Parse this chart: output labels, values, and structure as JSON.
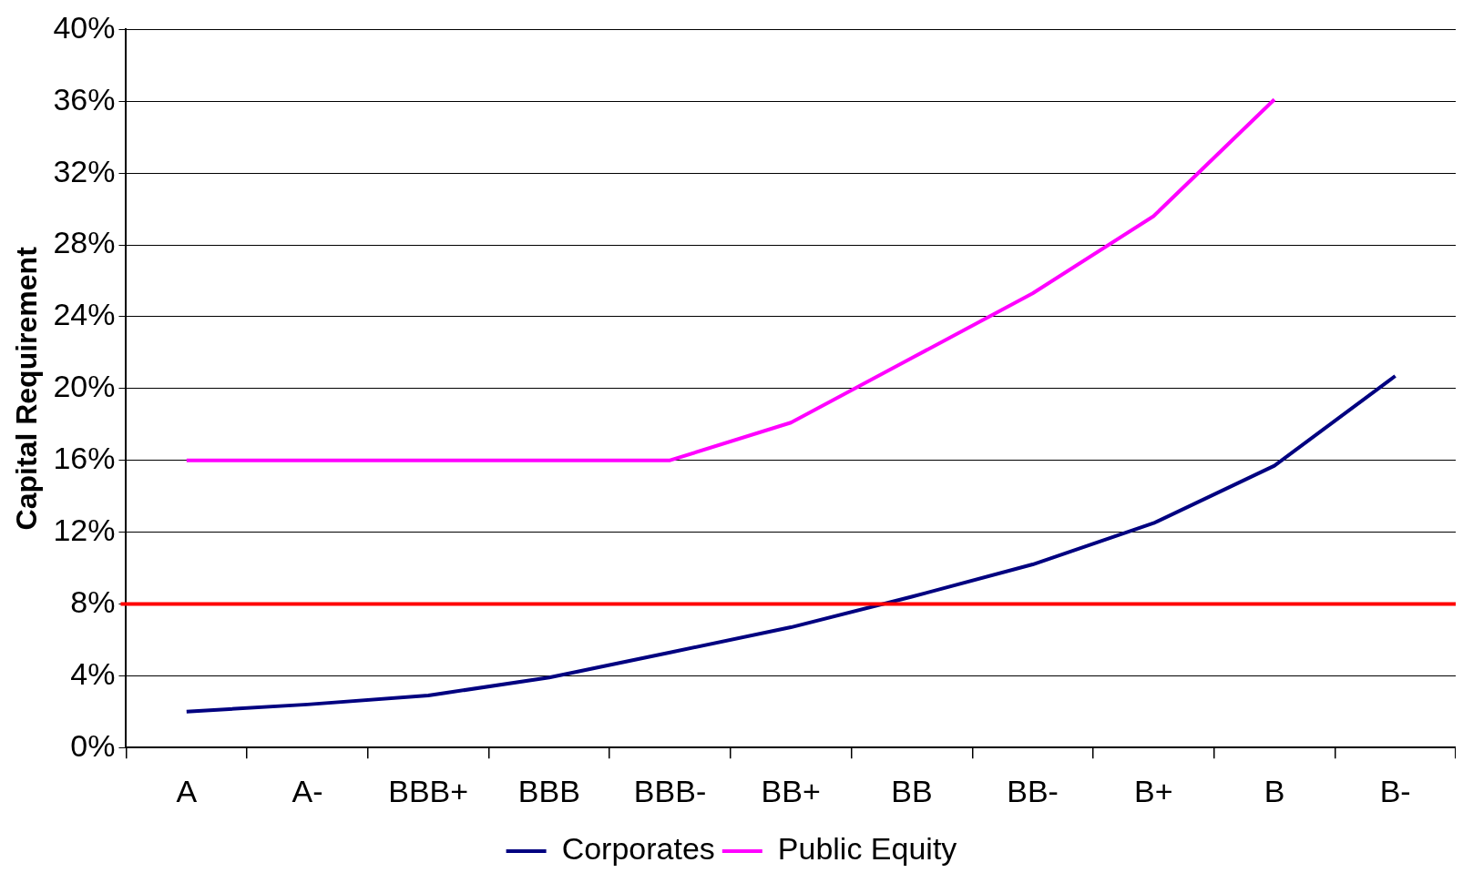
{
  "chart_data": {
    "type": "line",
    "ylabel": "Capital Requirement",
    "categories": [
      "A",
      "A-",
      "BBB+",
      "BBB",
      "BBB-",
      "BB+",
      "BB",
      "BB-",
      "B+",
      "B",
      "B-"
    ],
    "series": [
      {
        "name": "Corporates",
        "color": "#000080",
        "values": [
          2.0,
          2.4,
          2.9,
          3.9,
          5.3,
          6.7,
          8.4,
          10.2,
          12.5,
          15.7,
          20.7
        ]
      },
      {
        "name": "Public Equity",
        "color": "#ff00ff",
        "values": [
          16,
          16,
          16,
          16,
          16,
          18.1,
          21.7,
          25.3,
          29.6,
          36.1,
          null
        ]
      }
    ],
    "ylim": [
      0,
      40
    ],
    "yticks": [
      {
        "value": 0,
        "label": "0%"
      },
      {
        "value": 4,
        "label": "4%"
      },
      {
        "value": 8,
        "label": "8%"
      },
      {
        "value": 12,
        "label": "12%"
      },
      {
        "value": 16,
        "label": "16%"
      },
      {
        "value": 20,
        "label": "20%"
      },
      {
        "value": 24,
        "label": "24%"
      },
      {
        "value": 28,
        "label": "28%"
      },
      {
        "value": 32,
        "label": "32%"
      },
      {
        "value": 36,
        "label": "36%"
      },
      {
        "value": 40,
        "label": "40%"
      }
    ],
    "ref_lines": [
      {
        "axis": "y",
        "value": 8,
        "color": "#ff0000"
      }
    ],
    "grid": "y",
    "legend": "bottom",
    "marker": "none",
    "line_style": "solid"
  }
}
